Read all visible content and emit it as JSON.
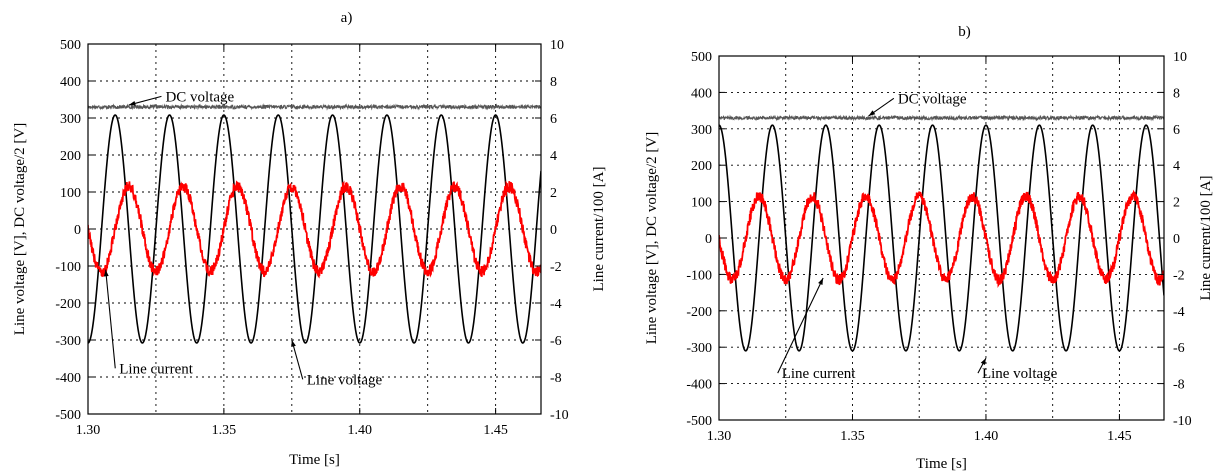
{
  "chart_data": [
    {
      "type": "line",
      "panel_label": "a)",
      "title": "",
      "xlabel": "Time [s]",
      "ylabel": "Line voltage [V], DC voltage/2 [V]",
      "y2label": "Line current/100 [A]",
      "xlim": [
        1.3,
        1.4667
      ],
      "ylim": [
        -500,
        500
      ],
      "y2lim": [
        -10,
        10
      ],
      "x_ticks": [
        "1.30",
        "1.35",
        "1.40",
        "1.45"
      ],
      "x_tick_values": [
        1.3,
        1.35,
        1.4,
        1.45
      ],
      "y_ticks": [
        "500",
        "400",
        "300",
        "200",
        "100",
        "0",
        "-100",
        "-200",
        "-300",
        "-400",
        "-500"
      ],
      "y2_ticks": [
        "10",
        "8",
        "6",
        "4",
        "2",
        "0",
        "-2",
        "-4",
        "-6",
        "-8",
        "-10"
      ],
      "grid": true,
      "series": [
        {
          "name": "DC voltage",
          "color": "#555555",
          "shape": "constant",
          "level": 330,
          "ripple": 5
        },
        {
          "name": "Line voltage",
          "color": "#000000",
          "shape": "sine",
          "amplitude": 308,
          "frequency_hz": 50,
          "phase_deg": -90
        },
        {
          "name": "Line current",
          "color": "#ff0000",
          "shape": "sine",
          "amplitude": 115,
          "frequency_hz": 50,
          "phase_deg": 180,
          "noise": 15
        }
      ],
      "annotations": [
        {
          "text": "DC voltage",
          "x": 1.3285,
          "y": 345,
          "arrow_to": [
            1.315,
            335
          ]
        },
        {
          "text": "Line current",
          "x": 1.3115,
          "y": -390,
          "arrow_to": [
            1.3065,
            -110
          ]
        },
        {
          "text": "Line voltage",
          "x": 1.3805,
          "y": -420,
          "arrow_to": [
            1.375,
            -300
          ]
        }
      ]
    },
    {
      "type": "line",
      "panel_label": "b)",
      "title": "",
      "xlabel": "Time [s]",
      "ylabel": "Line voltage [V], DC voltage/2 [V]",
      "y2label": "Line current/100 [A]",
      "xlim": [
        1.3,
        1.4667
      ],
      "ylim": [
        -500,
        500
      ],
      "y2lim": [
        -10,
        10
      ],
      "x_ticks": [
        "1.30",
        "1.35",
        "1.40",
        "1.45"
      ],
      "x_tick_values": [
        1.3,
        1.35,
        1.4,
        1.45
      ],
      "y_ticks": [
        "500",
        "400",
        "300",
        "200",
        "100",
        "0",
        "-100",
        "-200",
        "-300",
        "-400",
        "-500"
      ],
      "y2_ticks": [
        "10",
        "8",
        "6",
        "4",
        "2",
        "0",
        "-2",
        "-4",
        "-6",
        "-8",
        "-10"
      ],
      "grid": true,
      "series": [
        {
          "name": "DC voltage",
          "color": "#555555",
          "shape": "constant",
          "level": 330,
          "ripple": 5
        },
        {
          "name": "Line voltage",
          "color": "#000000",
          "shape": "sine",
          "amplitude": 310,
          "frequency_hz": 50,
          "phase_deg": 90
        },
        {
          "name": "Line current",
          "color": "#ff0000",
          "shape": "sine",
          "amplitude": 115,
          "frequency_hz": 50,
          "phase_deg": 180,
          "noise": 15
        }
      ],
      "annotations": [
        {
          "text": "DC voltage",
          "x": 1.367,
          "y": 370,
          "arrow_to": [
            1.356,
            335
          ]
        },
        {
          "text": "Line current",
          "x": 1.3235,
          "y": -385,
          "arrow_to": [
            1.339,
            -110
          ]
        },
        {
          "text": "Line voltage",
          "x": 1.3985,
          "y": -385,
          "arrow_to": [
            1.4,
            -330
          ]
        }
      ]
    }
  ]
}
